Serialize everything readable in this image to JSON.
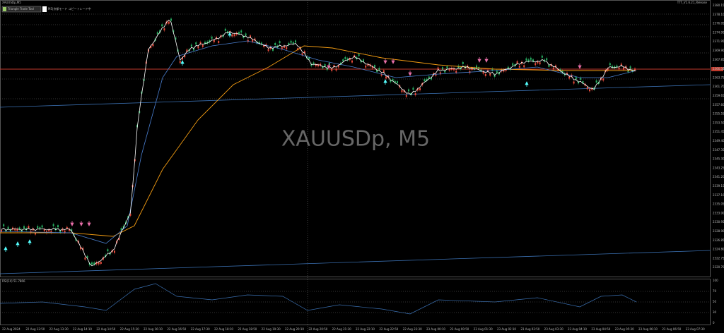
{
  "toolbar": {
    "symbol": "XAUUSDp,M5",
    "button": "Triangle Trade Tool",
    "mode": "M5|京都モード コピートレード中",
    "version": "TTT_V1.6.21_Release"
  },
  "watermark": "XAUUSDp, M5",
  "price_axis": {
    "labels": [
      "2380.15",
      "2378.10",
      "2376.05",
      "2374.00",
      "2371.95",
      "2369.90",
      "2367.85",
      "2365.80",
      "2363.75",
      "2361.70",
      "2359.65",
      "2357.60",
      "2355.55",
      "2353.50",
      "2351.45",
      "2349.40",
      "2347.35",
      "2345.30",
      "2343.25",
      "2341.20",
      "2339.15",
      "2337.10",
      "2335.05",
      "2333.00",
      "2330.95",
      "2328.90",
      "2326.85",
      "2324.80",
      "2322.75",
      "2320.70"
    ],
    "current": "2366.34"
  },
  "rsi": {
    "label": "RSI(14) 51.7866",
    "levels": [
      "100",
      "70",
      "50",
      "30",
      "0"
    ]
  },
  "time_axis": {
    "labels": [
      "22 Aug 2024",
      "22 Aug 12:50",
      "22 Aug 13:30",
      "22 Aug 14:10",
      "22 Aug 14:50",
      "22 Aug 15:30",
      "22 Aug 16:10",
      "22 Aug 16:50",
      "22 Aug 17:30",
      "22 Aug 18:10",
      "22 Aug 18:50",
      "22 Aug 19:30",
      "22 Aug 20:10",
      "22 Aug 20:50",
      "22 Aug 21:30",
      "22 Aug 22:10",
      "22 Aug 22:50",
      "22 Aug 23:30",
      "23 Aug 00:10",
      "23 Aug 00:50",
      "23 Aug 01:30",
      "23 Aug 02:10",
      "23 Aug 02:50",
      "23 Aug 03:30",
      "23 Aug 04:10",
      "23 Aug 04:50",
      "23 Aug 05:30",
      "23 Aug 06:10",
      "23 Aug 06:50",
      "23 Aug 07:30"
    ]
  }
}
